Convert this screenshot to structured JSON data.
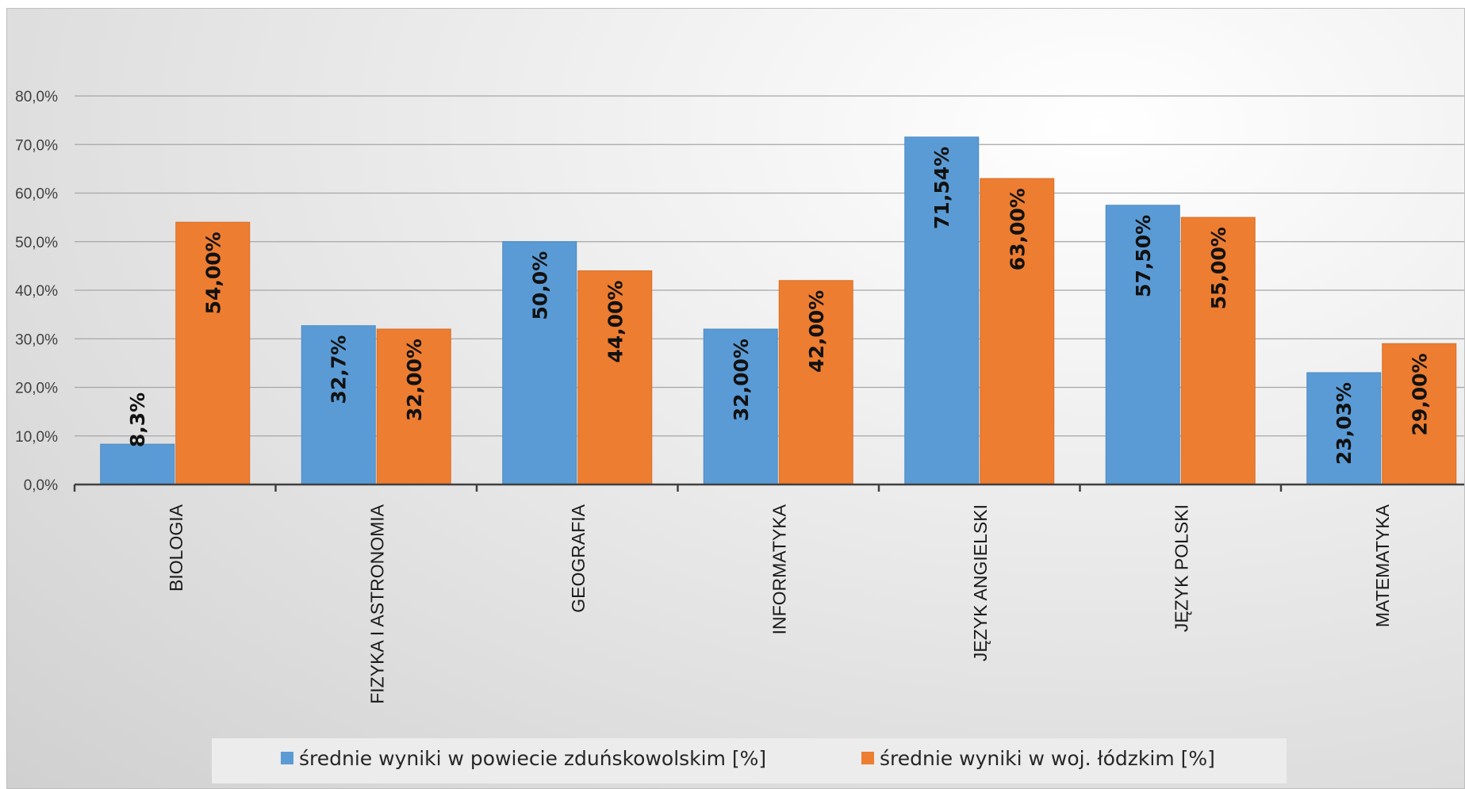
{
  "chart_data": {
    "type": "bar",
    "categories": [
      "BIOLOGIA",
      "FIZYKA I ASTRONOMIA",
      "GEOGRAFIA",
      "INFORMATYKA",
      "JĘZYK ANGIELSKI",
      "JĘZYK POLSKI",
      "MATEMATYKA"
    ],
    "series": [
      {
        "name": "średnie wyniki w powiecie zduńskowolskim [%]",
        "color": "#5b9bd5",
        "values": [
          8.3,
          32.7,
          50.0,
          32.0,
          71.54,
          57.5,
          23.03
        ],
        "labels": [
          "8,3%",
          "32,7%",
          "50,0%",
          "32,00%",
          "71,54%",
          "57,50%",
          "23,03%"
        ]
      },
      {
        "name": "średnie wyniki w woj. łódzkim [%]",
        "color": "#ed7d31",
        "values": [
          54.0,
          32.0,
          44.0,
          42.0,
          63.0,
          55.0,
          29.0
        ],
        "labels": [
          "54,00%",
          "32,00%",
          "44,00%",
          "42,00%",
          "63,00%",
          "55,00%",
          "29,00%"
        ]
      }
    ],
    "y_ticks": [
      "0,0%",
      "10,0%",
      "20,0%",
      "30,0%",
      "40,0%",
      "50,0%",
      "60,0%",
      "70,0%",
      "80,0%"
    ],
    "ylim": [
      0,
      80
    ],
    "grid": true,
    "legend_position": "bottom",
    "title": "",
    "xlabel": "",
    "ylabel": ""
  }
}
